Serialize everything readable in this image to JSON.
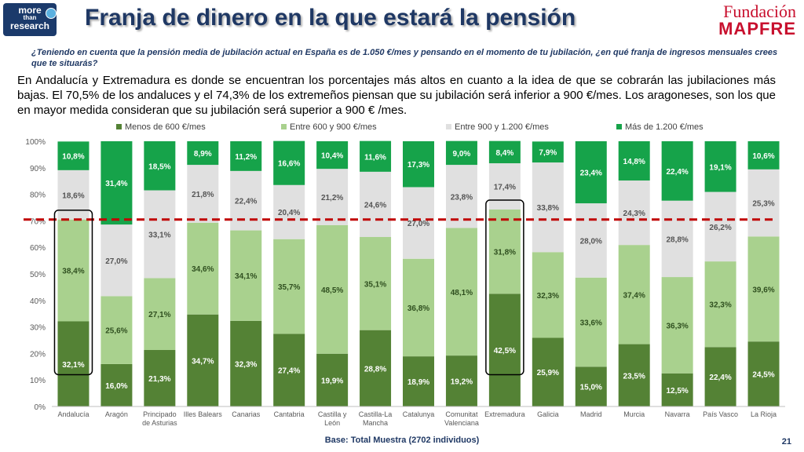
{
  "header": {
    "logo_line1": "more",
    "logo_line2": "than",
    "logo_line3": "research",
    "title": "Franja de dinero en la que estará la pensión",
    "brand_line1": "Fundación",
    "brand_line2": "MAPFRE"
  },
  "question": "¿Teniendo en cuenta que la pensión media de jubilación actual en España es de 1.050 €/mes y pensando en el momento de tu jubilación, ¿en qué franja de ingresos mensuales crees que te situarás?",
  "body_text": "En Andalucía y Extremadura es donde se encuentran los porcentajes más altos en cuanto a la idea de que se cobrarán las jubilaciones más bajas. El 70,5% de los andaluces y el 74,3% de los extremeños piensan que su jubilación será inferior a 900 €/mes. Los aragoneses, son los que en mayor medida consideran que su jubilación será superior a 900 € /mes.",
  "footer": {
    "base_note": "Base: Total Muestra (2702 individuos)",
    "page_number": "21"
  },
  "colors": {
    "menos_600": "#548235",
    "entre_600_900": "#a9d18e",
    "entre_900_1200": "#e0e0e0",
    "mas_1200": "#16a34a",
    "reference_line": "#c00000",
    "highlight_box": "#000000"
  },
  "chart_data": {
    "type": "bar",
    "stacked": true,
    "categories": [
      "Andalucía",
      "Aragón",
      "Principado de Asturias",
      "Illes Balears",
      "Canarias",
      "Cantabria",
      "Castilla y León",
      "Castilla-La Mancha",
      "Catalunya",
      "Comunitat Valenciana",
      "Extremadura",
      "Galicia",
      "Madrid",
      "Murcia",
      "Navarra",
      "País Vasco",
      "La Rioja"
    ],
    "category_lines": [
      [
        "Andalucía"
      ],
      [
        "Aragón"
      ],
      [
        "Principado",
        "de Asturias"
      ],
      [
        "Illes Balears"
      ],
      [
        "Canarias"
      ],
      [
        "Cantabria"
      ],
      [
        "Castilla y",
        "León"
      ],
      [
        "Castilla-La",
        "Mancha"
      ],
      [
        "Catalunya"
      ],
      [
        "Comunitat",
        "Valenciana"
      ],
      [
        "Extremadura"
      ],
      [
        "Galicia"
      ],
      [
        "Madrid"
      ],
      [
        "Murcia"
      ],
      [
        "Navarra"
      ],
      [
        "País Vasco"
      ],
      [
        "La Rioja"
      ]
    ],
    "series": [
      {
        "name": "Menos de 600 €/mes",
        "values": [
          32.1,
          16.0,
          21.3,
          34.7,
          32.3,
          27.4,
          19.9,
          28.8,
          18.9,
          19.2,
          42.5,
          25.9,
          15.0,
          23.5,
          12.5,
          22.4,
          24.5
        ],
        "labels": [
          "32,1%",
          "16,0%",
          "21,3%",
          "34,7%",
          "32,3%",
          "27,4%",
          "19,9%",
          "28,8%",
          "18,9%",
          "19,2%",
          "42,5%",
          "25,9%",
          "15,0%",
          "23,5%",
          "12,5%",
          "22,4%",
          "24,5%"
        ]
      },
      {
        "name": "Entre 600 y 900 €/mes",
        "values": [
          38.4,
          25.6,
          27.1,
          34.6,
          34.1,
          35.7,
          48.5,
          35.1,
          36.8,
          48.1,
          31.8,
          32.3,
          33.6,
          37.4,
          36.3,
          32.3,
          39.6
        ],
        "labels": [
          "38,4%",
          "25,6%",
          "27,1%",
          "34,6%",
          "34,1%",
          "35,7%",
          "48,5%",
          "35,1%",
          "36,8%",
          "48,1%",
          "31,8%",
          "32,3%",
          "33,6%",
          "37,4%",
          "36,3%",
          "32,3%",
          "39,6%"
        ]
      },
      {
        "name": "Entre 900 y 1.200 €/mes",
        "values": [
          18.6,
          27.0,
          33.1,
          21.8,
          22.4,
          20.4,
          21.2,
          24.6,
          27.0,
          23.8,
          17.4,
          33.8,
          28.0,
          24.3,
          28.8,
          26.2,
          25.3
        ],
        "labels": [
          "18,6%",
          "27,0%",
          "33,1%",
          "21,8%",
          "22,4%",
          "20,4%",
          "21,2%",
          "24,6%",
          "27,0%",
          "23,8%",
          "17,4%",
          "33,8%",
          "28,0%",
          "24,3%",
          "28,8%",
          "26,2%",
          "25,3%"
        ]
      },
      {
        "name": "Más de 1.200 €/mes",
        "values": [
          10.8,
          31.4,
          18.5,
          8.9,
          11.2,
          16.6,
          10.4,
          11.6,
          17.3,
          9.0,
          8.4,
          7.9,
          23.4,
          14.8,
          22.4,
          19.1,
          10.6
        ],
        "labels": [
          "10,8%",
          "31,4%",
          "18,5%",
          "8,9%",
          "11,2%",
          "16,6%",
          "10,4%",
          "11,6%",
          "17,3%",
          "9,0%",
          "8,4%",
          "7,9%",
          "23,4%",
          "14,8%",
          "22,4%",
          "19,1%",
          "10,6%"
        ]
      }
    ],
    "y_ticks": [
      "0%",
      "10%",
      "20%",
      "30%",
      "40%",
      "50%",
      "60%",
      "70%",
      "80%",
      "90%",
      "100%"
    ],
    "ylim": [
      0,
      100
    ],
    "reference_line_value": 70.5,
    "highlighted_categories": [
      0,
      10
    ],
    "legend_position": "top",
    "grid": false
  }
}
